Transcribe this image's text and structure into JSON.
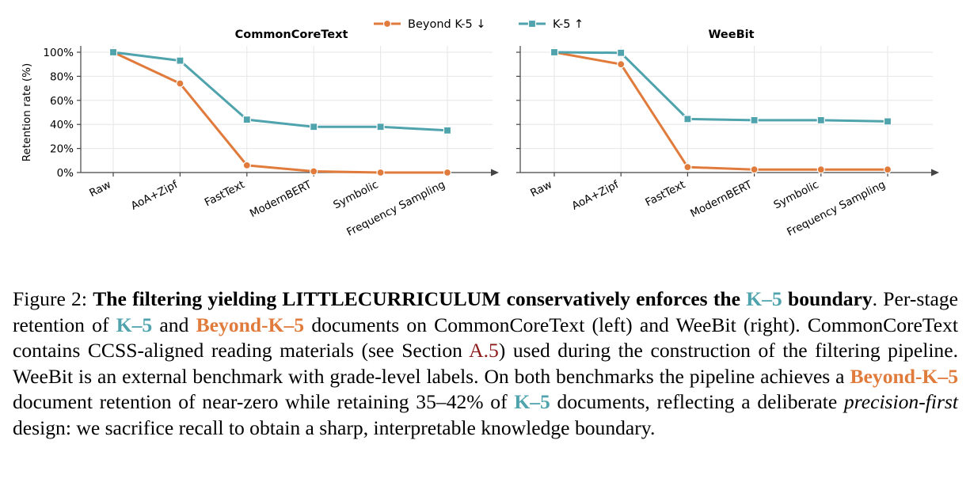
{
  "colors": {
    "beyond": "#e07b3c",
    "k5": "#4fa3ad",
    "axis": "#444444",
    "grid": "#e6e6e6"
  },
  "legend": {
    "beyond_label": "Beyond K-5 ↓",
    "k5_label": "K-5 ↑"
  },
  "chart_data": [
    {
      "type": "line",
      "title": "CommonCoreText",
      "ylabel": "Retention rate (%)",
      "categories": [
        "Raw",
        "AoA+Zipf",
        "FastText",
        "ModernBERT",
        "Symbolic",
        "Frequency Sampling"
      ],
      "yticks": [
        "0%",
        "20%",
        "40%",
        "60%",
        "80%",
        "100%"
      ],
      "ylim": [
        0,
        100
      ],
      "grid": true,
      "legend_position": "top-center",
      "series": [
        {
          "name": "Beyond K-5 ↓",
          "marker": "circle",
          "values": [
            100,
            74,
            6,
            1,
            0,
            0
          ]
        },
        {
          "name": "K-5 ↑",
          "marker": "square",
          "values": [
            100,
            93,
            44,
            38,
            38,
            35
          ]
        }
      ]
    },
    {
      "type": "line",
      "title": "WeeBit",
      "ylabel": "",
      "categories": [
        "Raw",
        "AoA+Zipf",
        "FastText",
        "ModernBERT",
        "Symbolic",
        "Frequency Sampling"
      ],
      "ylim": [
        0,
        100
      ],
      "grid": true,
      "series": [
        {
          "name": "Beyond K-5 ↓",
          "marker": "circle",
          "values": [
            100,
            90,
            4.5,
            2.5,
            2.5,
            2.5
          ]
        },
        {
          "name": "K-5 ↑",
          "marker": "square",
          "values": [
            100,
            99.5,
            44.5,
            43.5,
            43.5,
            42.5
          ]
        }
      ]
    }
  ],
  "caption": {
    "fig_label": "Figure 2:",
    "bold_a": "The filtering yielding",
    "little_l": "L",
    "little_rest": "ITTLE",
    "curr_c": "C",
    "curr_rest": "URRICULUM",
    "bold_b": "conservatively enforces the",
    "k5": "K–5",
    "bold_c": "boundary",
    "p1": ". Per-stage retention of",
    "p2": "and",
    "beyond_k5": "Beyond-K–5",
    "p3": "documents on CommonCoreText (left) and WeeBit (right). CommonCoreText contains CCSS-aligned reading materials (see Section",
    "ref": "A.5",
    "p4": ") used during the construction of the filtering pipeline. WeeBit is an external benchmark with grade-level labels. On both benchmarks the pipeline achieves a",
    "p5": "document retention of near-zero while retaining 35–42% of",
    "p6": "documents, reflecting a deliberate",
    "italic": "precision-first",
    "p7": "design: we sacrifice recall to obtain a sharp, interpretable knowledge boundary."
  }
}
